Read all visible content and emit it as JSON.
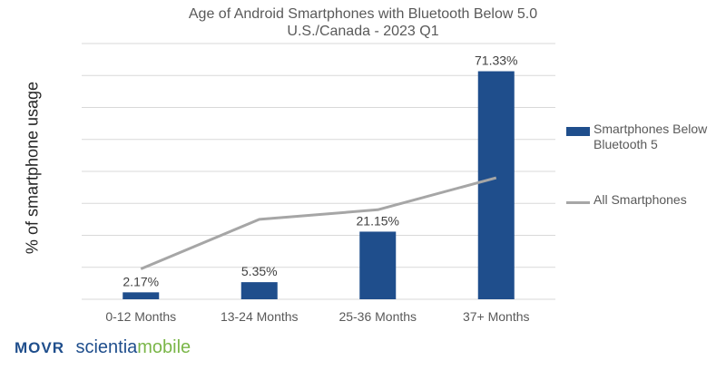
{
  "chart_data": {
    "type": "bar",
    "title": "Age of Android Smartphones with Bluetooth Below 5.0",
    "subtitle": "U.S./Canada - 2023 Q1",
    "ylabel": "% of smartphone usage",
    "xlabel": "",
    "categories": [
      "0-12 Months",
      "13-24 Months",
      "25-36 Months",
      "37+ Months"
    ],
    "ylim": [
      0,
      80
    ],
    "grid": true,
    "legend_position": "right",
    "series": [
      {
        "name": "Smartphones Below Bluetooth 5",
        "type": "bar",
        "color": "#1f4e8c",
        "values": [
          2.17,
          5.35,
          21.15,
          71.33
        ],
        "labels": [
          "2.17%",
          "5.35%",
          "21.15%",
          "71.33%"
        ]
      },
      {
        "name": "All Smartphones",
        "type": "line",
        "color": "#a6a6a6",
        "values": [
          9.5,
          25,
          28,
          38
        ]
      }
    ]
  },
  "footer": {
    "movr": "MOVR",
    "brand_part1": "scientia",
    "brand_part2": "mobile",
    "movr_color": "#1f4e8c",
    "brand_color1": "#1f4e8c",
    "brand_color2": "#7ab648"
  }
}
